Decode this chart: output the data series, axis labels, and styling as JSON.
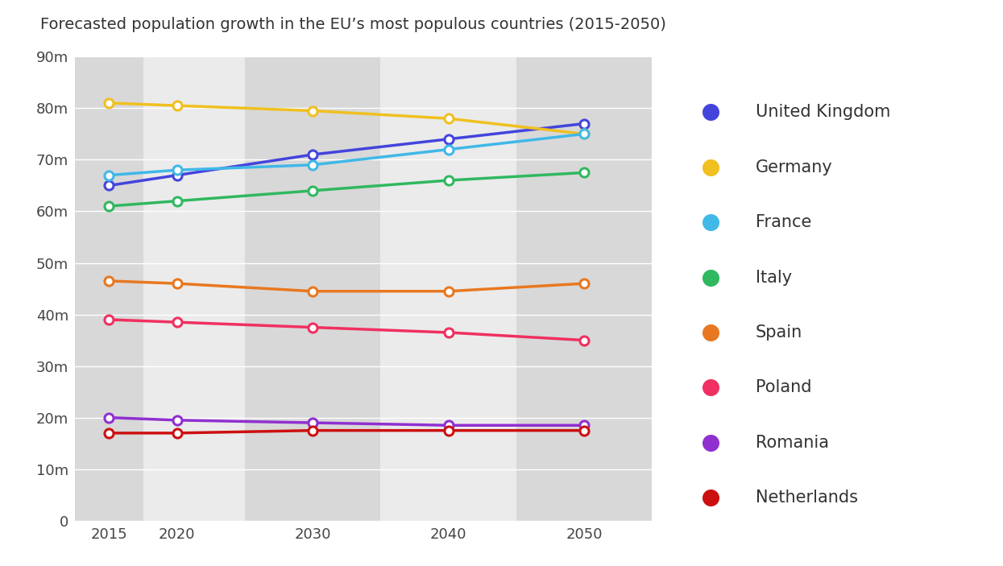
{
  "title": "Forecasted population growth in the EU’s most populous countries (2015-2050)",
  "years": [
    2015,
    2020,
    2030,
    2040,
    2050
  ],
  "series": [
    {
      "name": "United Kingdom",
      "color": "#4444dd",
      "values": [
        65,
        67,
        71,
        74,
        77
      ]
    },
    {
      "name": "Germany",
      "color": "#f0c020",
      "values": [
        81,
        80.5,
        79.5,
        78,
        75
      ]
    },
    {
      "name": "France",
      "color": "#40b8e8",
      "values": [
        67,
        68,
        69,
        72,
        75
      ]
    },
    {
      "name": "Italy",
      "color": "#30b860",
      "values": [
        61,
        62,
        64,
        66,
        67.5
      ]
    },
    {
      "name": "Spain",
      "color": "#e87820",
      "values": [
        46.5,
        46,
        44.5,
        44.5,
        46
      ]
    },
    {
      "name": "Poland",
      "color": "#f03060",
      "values": [
        39,
        38.5,
        37.5,
        36.5,
        35
      ]
    },
    {
      "name": "Romania",
      "color": "#9030d0",
      "values": [
        20,
        19.5,
        19,
        18.5,
        18.5
      ]
    },
    {
      "name": "Netherlands",
      "color": "#cc1010",
      "values": [
        17,
        17,
        17.5,
        17.5,
        17.5
      ]
    }
  ],
  "ylim": [
    0,
    90
  ],
  "yticks": [
    0,
    10,
    20,
    30,
    40,
    50,
    60,
    70,
    80,
    90
  ],
  "ytick_labels": [
    "0",
    "10m",
    "20m",
    "30m",
    "40m",
    "50m",
    "60m",
    "70m",
    "80m",
    "90m"
  ],
  "xticks": [
    2015,
    2020,
    2030,
    2040,
    2050
  ],
  "background_color": "#ffffff",
  "plot_bg_color": "#ebebeb",
  "stripe_color": "#d8d8d8",
  "marker_size": 8,
  "line_width": 2.5,
  "legend_fontsize": 15,
  "title_fontsize": 14,
  "tick_fontsize": 13
}
